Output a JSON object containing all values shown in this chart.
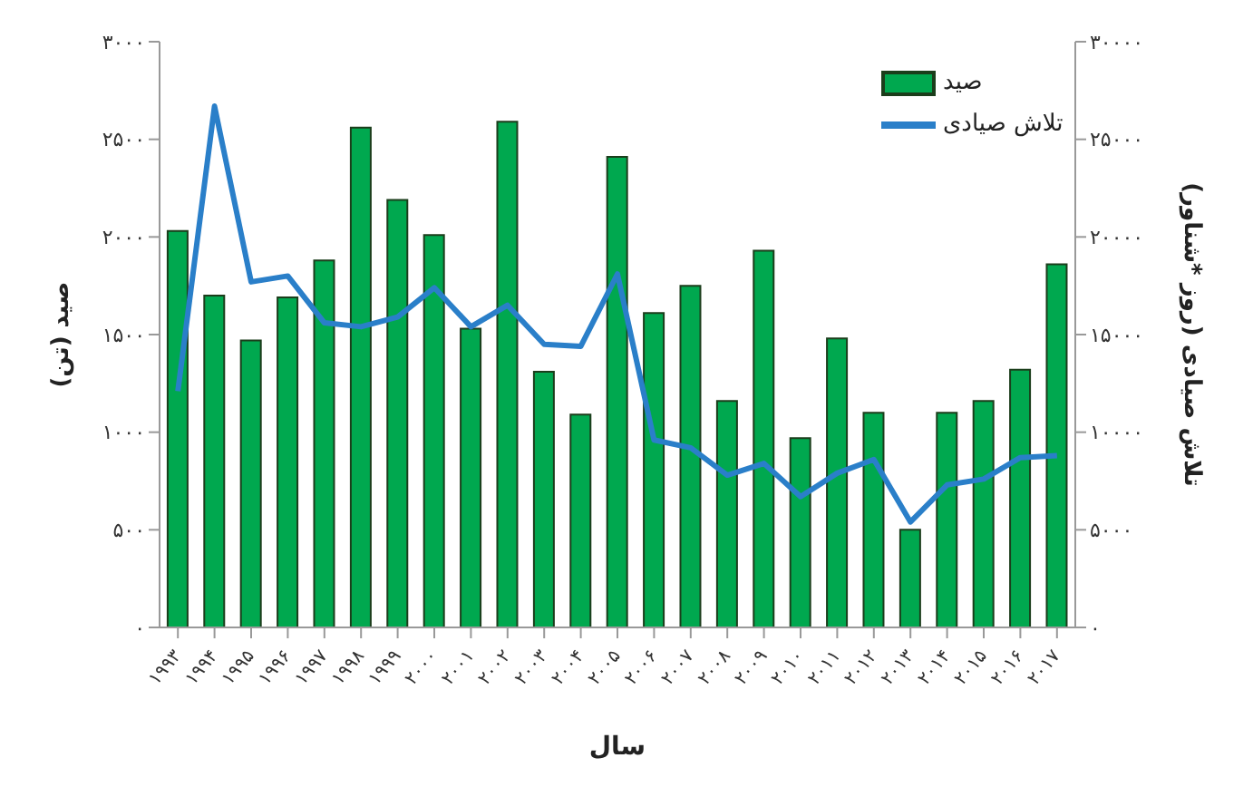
{
  "chart_data": {
    "type": "bar",
    "xlabel": "سال",
    "ylabel": "صید (تن)",
    "y2label": "تلاش صیادی (روز *شناور)",
    "categories": [
      "۱۹۹۳",
      "۱۹۹۴",
      "۱۹۹۵",
      "۱۹۹۶",
      "۱۹۹۷",
      "۱۹۹۸",
      "۱۹۹۹",
      "۲۰۰۰",
      "۲۰۰۱",
      "۲۰۰۲",
      "۲۰۰۳",
      "۲۰۰۴",
      "۲۰۰۵",
      "۲۰۰۶",
      "۲۰۰۷",
      "۲۰۰۸",
      "۲۰۰۹",
      "۲۰۱۰",
      "۲۰۱۱",
      "۲۰۱۲",
      "۲۰۱۳",
      "۲۰۱۴",
      "۲۰۱۵",
      "۲۰۱۶",
      "۲۰۱۷"
    ],
    "series": [
      {
        "name": "صید",
        "color": "#00a84f",
        "values": [
          2030,
          1700,
          1470,
          1690,
          1880,
          2560,
          2190,
          2010,
          1530,
          2590,
          1310,
          1090,
          2410,
          1610,
          1750,
          1160,
          1930,
          970,
          1480,
          1100,
          500,
          1100,
          1160,
          1320,
          1860
        ]
      },
      {
        "name": "تلاش صیادی",
        "type": "line",
        "axis": "y2",
        "color": "#2a7fc9",
        "values": [
          12100,
          26700,
          17700,
          18000,
          15600,
          15400,
          15900,
          17400,
          15400,
          16500,
          14500,
          14400,
          18100,
          9600,
          9200,
          7800,
          8400,
          6700,
          7900,
          8600,
          5400,
          7300,
          7600,
          8700,
          8800
        ]
      }
    ],
    "ylim": [
      0,
      3000
    ],
    "yticks": [
      {
        "value": 0,
        "label": "۰"
      },
      {
        "value": 500,
        "label": "۵۰۰"
      },
      {
        "value": 1000,
        "label": "۱۰۰۰"
      },
      {
        "value": 1500,
        "label": "۱۵۰۰"
      },
      {
        "value": 2000,
        "label": "۲۰۰۰"
      },
      {
        "value": 2500,
        "label": "۲۵۰۰"
      },
      {
        "value": 3000,
        "label": "۳۰۰۰"
      }
    ],
    "y2lim": [
      0,
      30000
    ],
    "y2ticks": [
      {
        "value": 0,
        "label": "۰"
      },
      {
        "value": 5000,
        "label": "۵۰۰۰"
      },
      {
        "value": 10000,
        "label": "۱۰۰۰۰"
      },
      {
        "value": 15000,
        "label": "۱۵۰۰۰"
      },
      {
        "value": 20000,
        "label": "۲۰۰۰۰"
      },
      {
        "value": 25000,
        "label": "۲۵۰۰۰"
      },
      {
        "value": 30000,
        "label": "۳۰۰۰۰"
      }
    ],
    "grid": false,
    "legend": "top right",
    "marker": "none",
    "line_style": "solid"
  }
}
